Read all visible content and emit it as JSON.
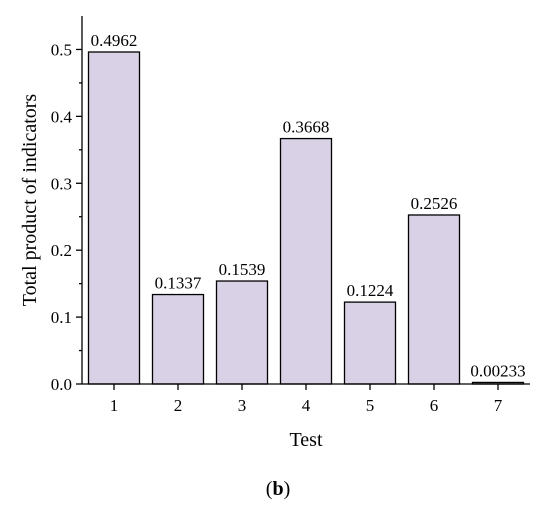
{
  "chart_data": {
    "type": "bar",
    "categories": [
      "1",
      "2",
      "3",
      "4",
      "5",
      "6",
      "7"
    ],
    "values": [
      0.4962,
      0.1337,
      0.1539,
      0.3668,
      0.1224,
      0.2526,
      0.00233
    ],
    "data_labels": [
      "0.4962",
      "0.1337",
      "0.1539",
      "0.3668",
      "0.1224",
      "0.2526",
      "0.00233"
    ],
    "xlabel": "Test",
    "ylabel": "Total product of indicators",
    "ylim": [
      0,
      0.55
    ],
    "yticks": [
      "0.0",
      "0.1",
      "0.2",
      "0.3",
      "0.4",
      "0.5"
    ],
    "ytick_values": [
      0,
      0.1,
      0.2,
      0.3,
      0.4,
      0.5
    ],
    "grid": false,
    "bar_color": "#d9d2e6",
    "edge_color": "#000000"
  },
  "panel_label": {
    "open": "(",
    "letter": "b",
    "close": ")"
  }
}
